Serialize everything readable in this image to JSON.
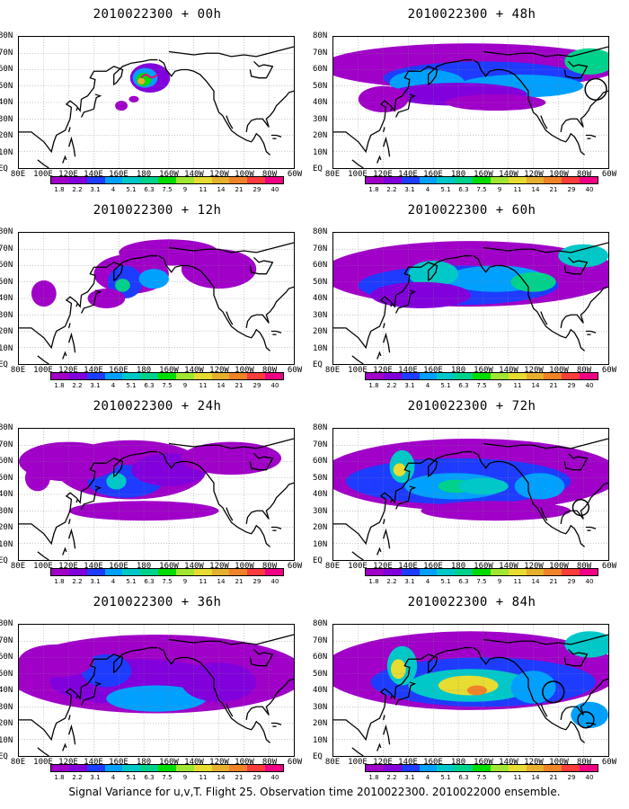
{
  "panels": [
    {
      "title": "2010022300 + 00h"
    },
    {
      "title": "2010022300 + 48h"
    },
    {
      "title": "2010022300 + 12h"
    },
    {
      "title": "2010022300 + 60h"
    },
    {
      "title": "2010022300 + 24h"
    },
    {
      "title": "2010022300 + 72h"
    },
    {
      "title": "2010022300 + 36h"
    },
    {
      "title": "2010022300 + 84h"
    }
  ],
  "lat_labels": [
    "80N",
    "70N",
    "60N",
    "50N",
    "40N",
    "30N",
    "20N",
    "10N",
    "EQ"
  ],
  "lon_labels": [
    "80E",
    "100E",
    "120E",
    "140E",
    "160E",
    "180",
    "160W",
    "140W",
    "120W",
    "100W",
    "80W",
    "60W"
  ],
  "colorbar": {
    "labels": [
      "1.8",
      "2.2",
      "3.1",
      "4",
      "5.1",
      "6.3",
      "7.5",
      "9",
      "11",
      "14",
      "21",
      "29",
      "40"
    ],
    "colors": [
      "#a000c8",
      "#8200dc",
      "#1e3cff",
      "#00a0ff",
      "#00c8c8",
      "#00d28c",
      "#00dc00",
      "#a0e632",
      "#e6dc32",
      "#e6af2d",
      "#f08228",
      "#fa3c3c",
      "#f00082"
    ]
  },
  "caption": "Signal Variance for u,v,T. Flight 25. Observation time 2010022300. 2010022000 ensemble."
}
